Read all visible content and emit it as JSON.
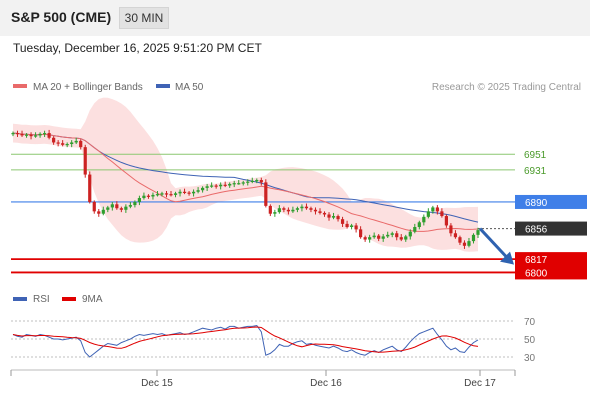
{
  "header": {
    "title": "S&P 500 (CME)",
    "timeframe": "30 MIN"
  },
  "datetime": "Tuesday, December 16, 2025 9:51:20 PM CET",
  "legend": {
    "ma20": "MA 20 + Bollinger Bands",
    "ma50": "MA 50",
    "credit": "Research © 2025 Trading Central"
  },
  "rsi_legend": {
    "rsi": "RSI",
    "ma": "9MA"
  },
  "colors": {
    "candle_up": "#2e9e2e",
    "candle_down": "#cc2222",
    "ma20": "#e96a6a",
    "ma50": "#3f63b5",
    "bollinger_fill": "#fbd5d5",
    "resistance": "#8cc770",
    "pivot": "#3f7fe8",
    "support": "#e00000",
    "current": "#333333",
    "arrow": "#2f62b0"
  },
  "chart_data": {
    "type": "candlestick",
    "x_ticks": [
      "Dec 15",
      "Dec 16",
      "Dec 17"
    ],
    "levels": [
      {
        "label": "6951",
        "value": 6951,
        "kind": "resistance"
      },
      {
        "label": "6931",
        "value": 6931,
        "kind": "resistance"
      },
      {
        "label": "6890",
        "value": 6890,
        "kind": "pivot"
      },
      {
        "label": "6856",
        "value": 6856,
        "kind": "current"
      },
      {
        "label": "6817",
        "value": 6817,
        "kind": "support"
      },
      {
        "label": "6800",
        "value": 6800,
        "kind": "support"
      }
    ],
    "price_range": [
      6775,
      7010
    ],
    "forecast": {
      "from": 6856,
      "to": 6810,
      "direction": "down"
    },
    "closes": [
      6978,
      6977,
      6975,
      6976,
      6974,
      6975,
      6977,
      6978,
      6972,
      6966,
      6965,
      6963,
      6964,
      6966,
      6968,
      6960,
      6925,
      6890,
      6878,
      6875,
      6880,
      6883,
      6887,
      6882,
      6880,
      6884,
      6886,
      6890,
      6895,
      6898,
      6897,
      6899,
      6900,
      6901,
      6900,
      6899,
      6901,
      6903,
      6902,
      6901,
      6903,
      6905,
      6908,
      6910,
      6911,
      6910,
      6912,
      6911,
      6913,
      6914,
      6914,
      6915,
      6916,
      6917,
      6918,
      6915,
      6885,
      6875,
      6877,
      6882,
      6880,
      6878,
      6880,
      6882,
      6884,
      6882,
      6880,
      6878,
      6876,
      6874,
      6870,
      6872,
      6868,
      6862,
      6858,
      6860,
      6855,
      6845,
      6842,
      6845,
      6847,
      6843,
      6846,
      6848,
      6850,
      6845,
      6842,
      6846,
      6852,
      6858,
      6864,
      6871,
      6878,
      6883,
      6878,
      6872,
      6860,
      6850,
      6845,
      6838,
      6834,
      6840,
      6848,
      6854
    ],
    "rsi": {
      "levels": [
        70,
        50,
        30
      ],
      "values": [
        55,
        53,
        52,
        55,
        54,
        53,
        55,
        54,
        52,
        50,
        50,
        49,
        50,
        51,
        52,
        48,
        35,
        30,
        34,
        38,
        42,
        45,
        44,
        43,
        46,
        48,
        50,
        53,
        55,
        54,
        55,
        56,
        55,
        56,
        54,
        55,
        56,
        57,
        55,
        56,
        58,
        60,
        62,
        61,
        60,
        62,
        63,
        61,
        64,
        64,
        62,
        63,
        64,
        64,
        65,
        58,
        32,
        34,
        38,
        44,
        42,
        42,
        45,
        47,
        48,
        44,
        45,
        43,
        42,
        41,
        40,
        42,
        40,
        37,
        36,
        38,
        35,
        33,
        32,
        35,
        37,
        35,
        38,
        40,
        42,
        38,
        36,
        41,
        47,
        52,
        56,
        58,
        60,
        62,
        55,
        49,
        42,
        38,
        40,
        36,
        35,
        41,
        46,
        49
      ]
    }
  }
}
